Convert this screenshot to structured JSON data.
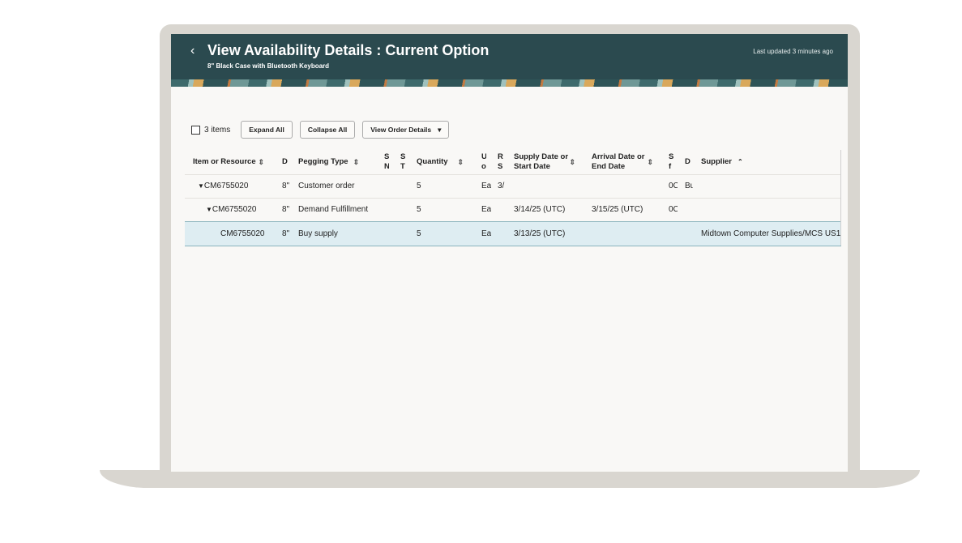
{
  "header": {
    "back_icon": "chevron-left-icon",
    "title": "View Availability Details : Current Option",
    "subtitle": "8\" Black Case with Bluetooth Keyboard",
    "last_updated": "Last updated 3 minutes ago",
    "color": "#2b4a4f"
  },
  "toolbar": {
    "count": "3 items",
    "expand_all": "Expand All",
    "collapse_all": "Collapse All",
    "view_order_details": "View Order Details"
  },
  "columns": [
    "Item or Resource",
    "D",
    "Pegging Type",
    "S N",
    "S T",
    "Quantity",
    "U o",
    "R S",
    "Supply Date or Start Date",
    "Arrival Date or End Date",
    "S f",
    "D",
    "Supplier"
  ],
  "rows": [
    {
      "item": "CM6755020",
      "d": "8\"",
      "pegging": "Customer order",
      "sn": "",
      "st": "",
      "qty": "5",
      "uom": "Ea",
      "rs": "3/",
      "supply": "",
      "arrival": "",
      "sf": "0C",
      "d2": "Bu",
      "supplier": ""
    },
    {
      "item": "CM6755020",
      "d": "8\"",
      "pegging": "Demand Fulfillment",
      "sn": "",
      "st": "",
      "qty": "5",
      "uom": "Ea",
      "rs": "",
      "supply": "3/14/25 (UTC)",
      "arrival": "3/15/25 (UTC)",
      "sf": "0C",
      "d2": "",
      "supplier": ""
    },
    {
      "item": "CM6755020",
      "d": "8\"",
      "pegging": "Buy supply",
      "sn": "",
      "st": "",
      "qty": "5",
      "uom": "Ea",
      "rs": "",
      "supply": "3/13/25 (UTC)",
      "arrival": "",
      "sf": "",
      "d2": "",
      "supplier": "Midtown Computer Supplies/MCS US1"
    }
  ]
}
